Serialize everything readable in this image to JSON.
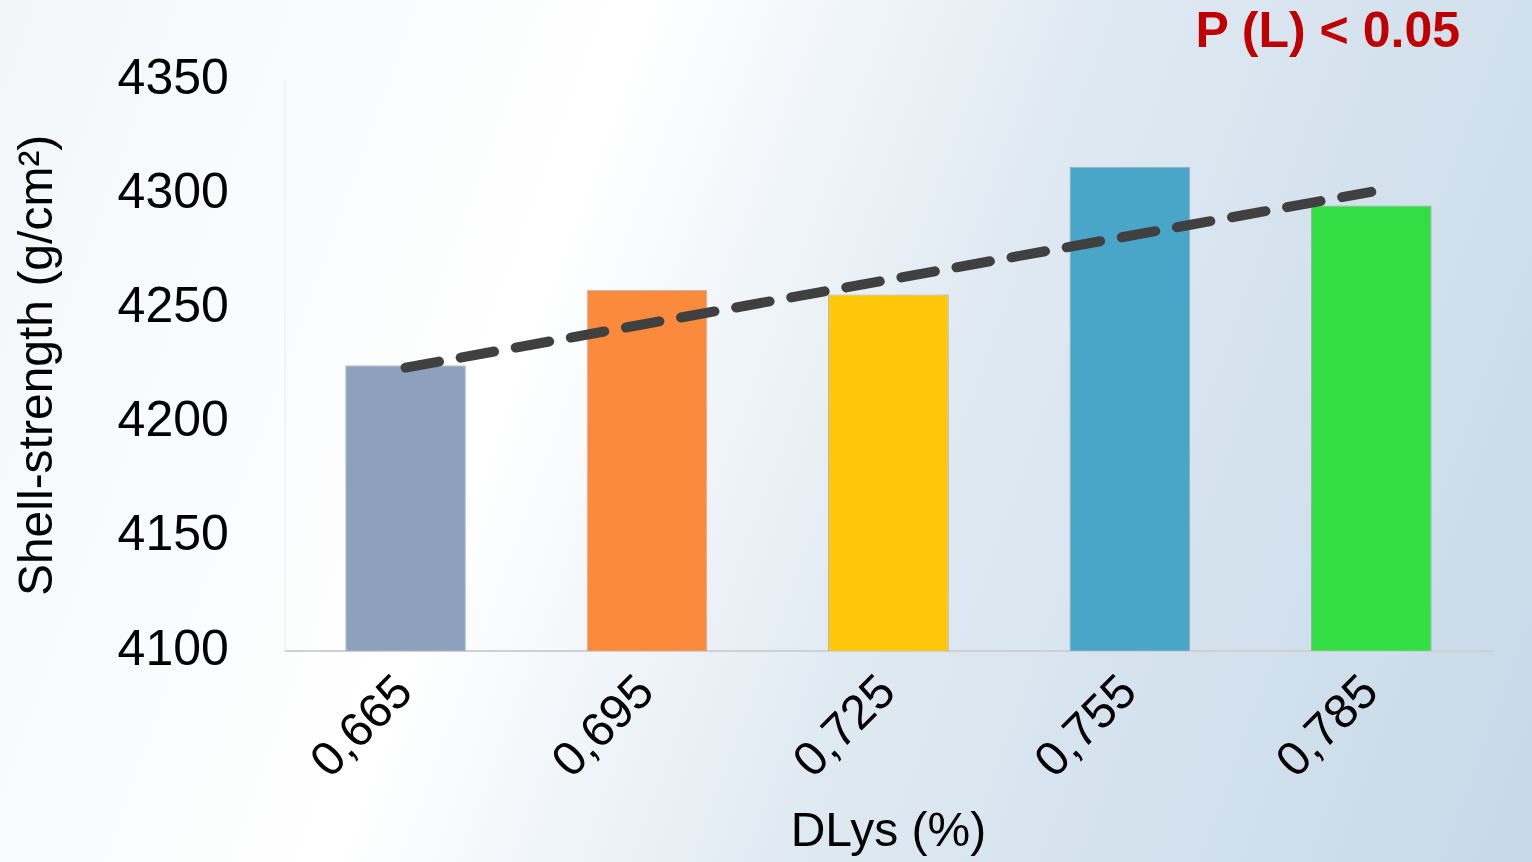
{
  "chart_data": {
    "type": "bar",
    "xlabel": "DLys (%)",
    "ylabel": "Shell-strength (g/cm²)",
    "annotations": [
      "P (L) < 0.05"
    ],
    "categories": [
      "0,665",
      "0,695",
      "0,725",
      "0,755",
      "0,785"
    ],
    "series": [
      {
        "colors": [
          "#8da0bd",
          "#fb8a3c",
          "#ffc60a",
          "#4aa6c8",
          "#33dd44"
        ],
        "values": [
          4225,
          4258,
          4256,
          4312,
          4295
        ]
      },
      {
        "type": "line",
        "color": "#404040",
        "line_style": "dashed",
        "marker": "none",
        "values": [
          4224,
          null,
          null,
          null,
          4301
        ]
      }
    ],
    "ylim": [
      4100,
      4350
    ],
    "yticks": [
      4100,
      4150,
      4200,
      4250,
      4300,
      4350
    ],
    "grid": false,
    "legend": false
  }
}
